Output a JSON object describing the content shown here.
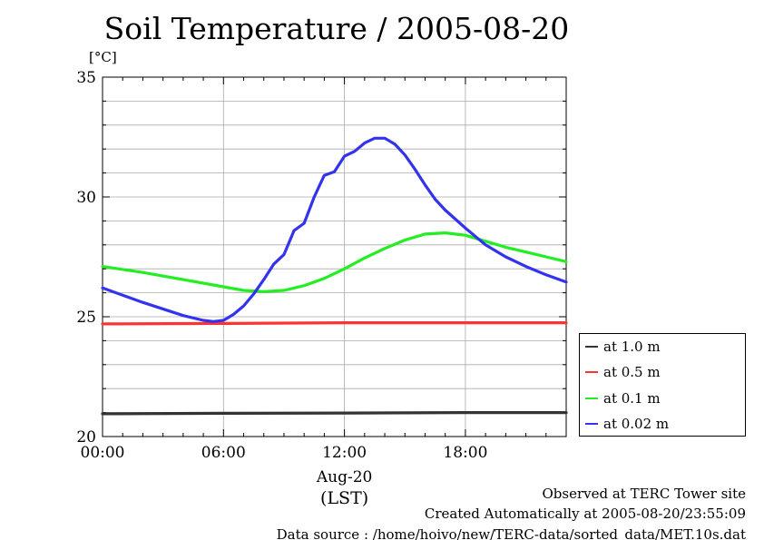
{
  "title": "Soil Temperature / 2005-08-20",
  "unit_label": "[°C]",
  "footer": {
    "line1": "Observed at TERC Tower site",
    "line2": "Created Automatically at 2005-08-20/23:55:09",
    "line3": "Data source : /home/hoivo/new/TERC-data/sorted_data/MET.10s.dat"
  },
  "chart_data": {
    "type": "line",
    "title": "Soil Temperature / 2005-08-20",
    "ylabel": "[°C]",
    "xlabel": "(LST)",
    "date_label": "Aug-20",
    "xlim": [
      0,
      23
    ],
    "ylim": [
      20,
      35
    ],
    "x_ticks": [
      0,
      6,
      12,
      18
    ],
    "x_tick_labels": [
      "00:00",
      "06:00",
      "12:00",
      "18:00"
    ],
    "y_ticks": [
      20,
      25,
      30,
      35
    ],
    "y_tick_labels": [
      "20",
      "25",
      "30",
      "35"
    ],
    "grid": true,
    "legend_position": "right-bottom-outside",
    "series": [
      {
        "name": "at 1.0 m",
        "color": "#333333",
        "x": [
          0,
          6,
          12,
          18,
          23
        ],
        "y": [
          20.95,
          20.97,
          20.98,
          21.0,
          21.0
        ]
      },
      {
        "name": "at 0.5 m",
        "color": "#ff3333",
        "x": [
          0,
          6,
          12,
          18,
          23
        ],
        "y": [
          24.7,
          24.72,
          24.75,
          24.75,
          24.75
        ]
      },
      {
        "name": "at 0.1 m",
        "color": "#22ee22",
        "x": [
          0,
          2,
          4,
          6,
          7,
          8,
          9,
          10,
          11,
          12,
          13,
          14,
          15,
          16,
          17,
          18,
          19,
          20,
          21,
          22,
          23
        ],
        "y": [
          27.1,
          26.85,
          26.55,
          26.25,
          26.1,
          26.05,
          26.1,
          26.3,
          26.6,
          27.0,
          27.45,
          27.85,
          28.2,
          28.45,
          28.5,
          28.4,
          28.15,
          27.9,
          27.7,
          27.5,
          27.3
        ]
      },
      {
        "name": "at 0.02 m",
        "color": "#3333ee",
        "x": [
          0,
          2,
          4,
          5,
          5.5,
          6,
          6.5,
          7,
          7.5,
          8,
          8.5,
          9,
          9.5,
          10,
          10.5,
          11,
          11.5,
          12,
          12.5,
          13,
          13.5,
          14,
          14.5,
          15,
          15.5,
          16,
          16.5,
          17,
          18,
          19,
          20,
          21,
          22,
          23
        ],
        "y": [
          26.2,
          25.6,
          25.05,
          24.85,
          24.8,
          24.85,
          25.1,
          25.45,
          25.95,
          26.55,
          27.2,
          27.6,
          28.6,
          28.9,
          30.0,
          30.9,
          31.05,
          31.7,
          31.9,
          32.25,
          32.45,
          32.45,
          32.2,
          31.75,
          31.15,
          30.5,
          29.9,
          29.45,
          28.7,
          28.0,
          27.5,
          27.1,
          26.75,
          26.45
        ]
      }
    ]
  }
}
